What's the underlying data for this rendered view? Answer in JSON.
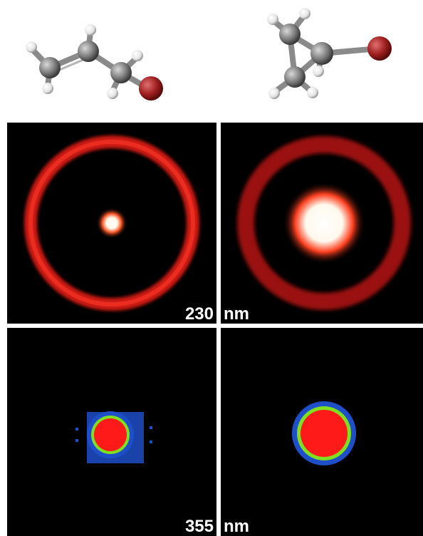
{
  "molecules": {
    "left": "allyl-bromide-molecule",
    "right": "cyclopropyl-bromide-molecule",
    "atom_colors": {
      "carbon": "#7f7f7f",
      "hydrogen": "#eeeeee",
      "bromine": "#a02020"
    }
  },
  "rows": [
    {
      "wavelength_value": "230",
      "wavelength_unit": "nm"
    },
    {
      "wavelength_value": "355",
      "wavelength_unit": "nm"
    }
  ],
  "colors": {
    "background": "#000000",
    "ring": "#e8201c",
    "core": "#ffffff",
    "map_red": "#ff1a1a",
    "map_green": "#7fe021",
    "map_blue": "#1f4fc8"
  }
}
